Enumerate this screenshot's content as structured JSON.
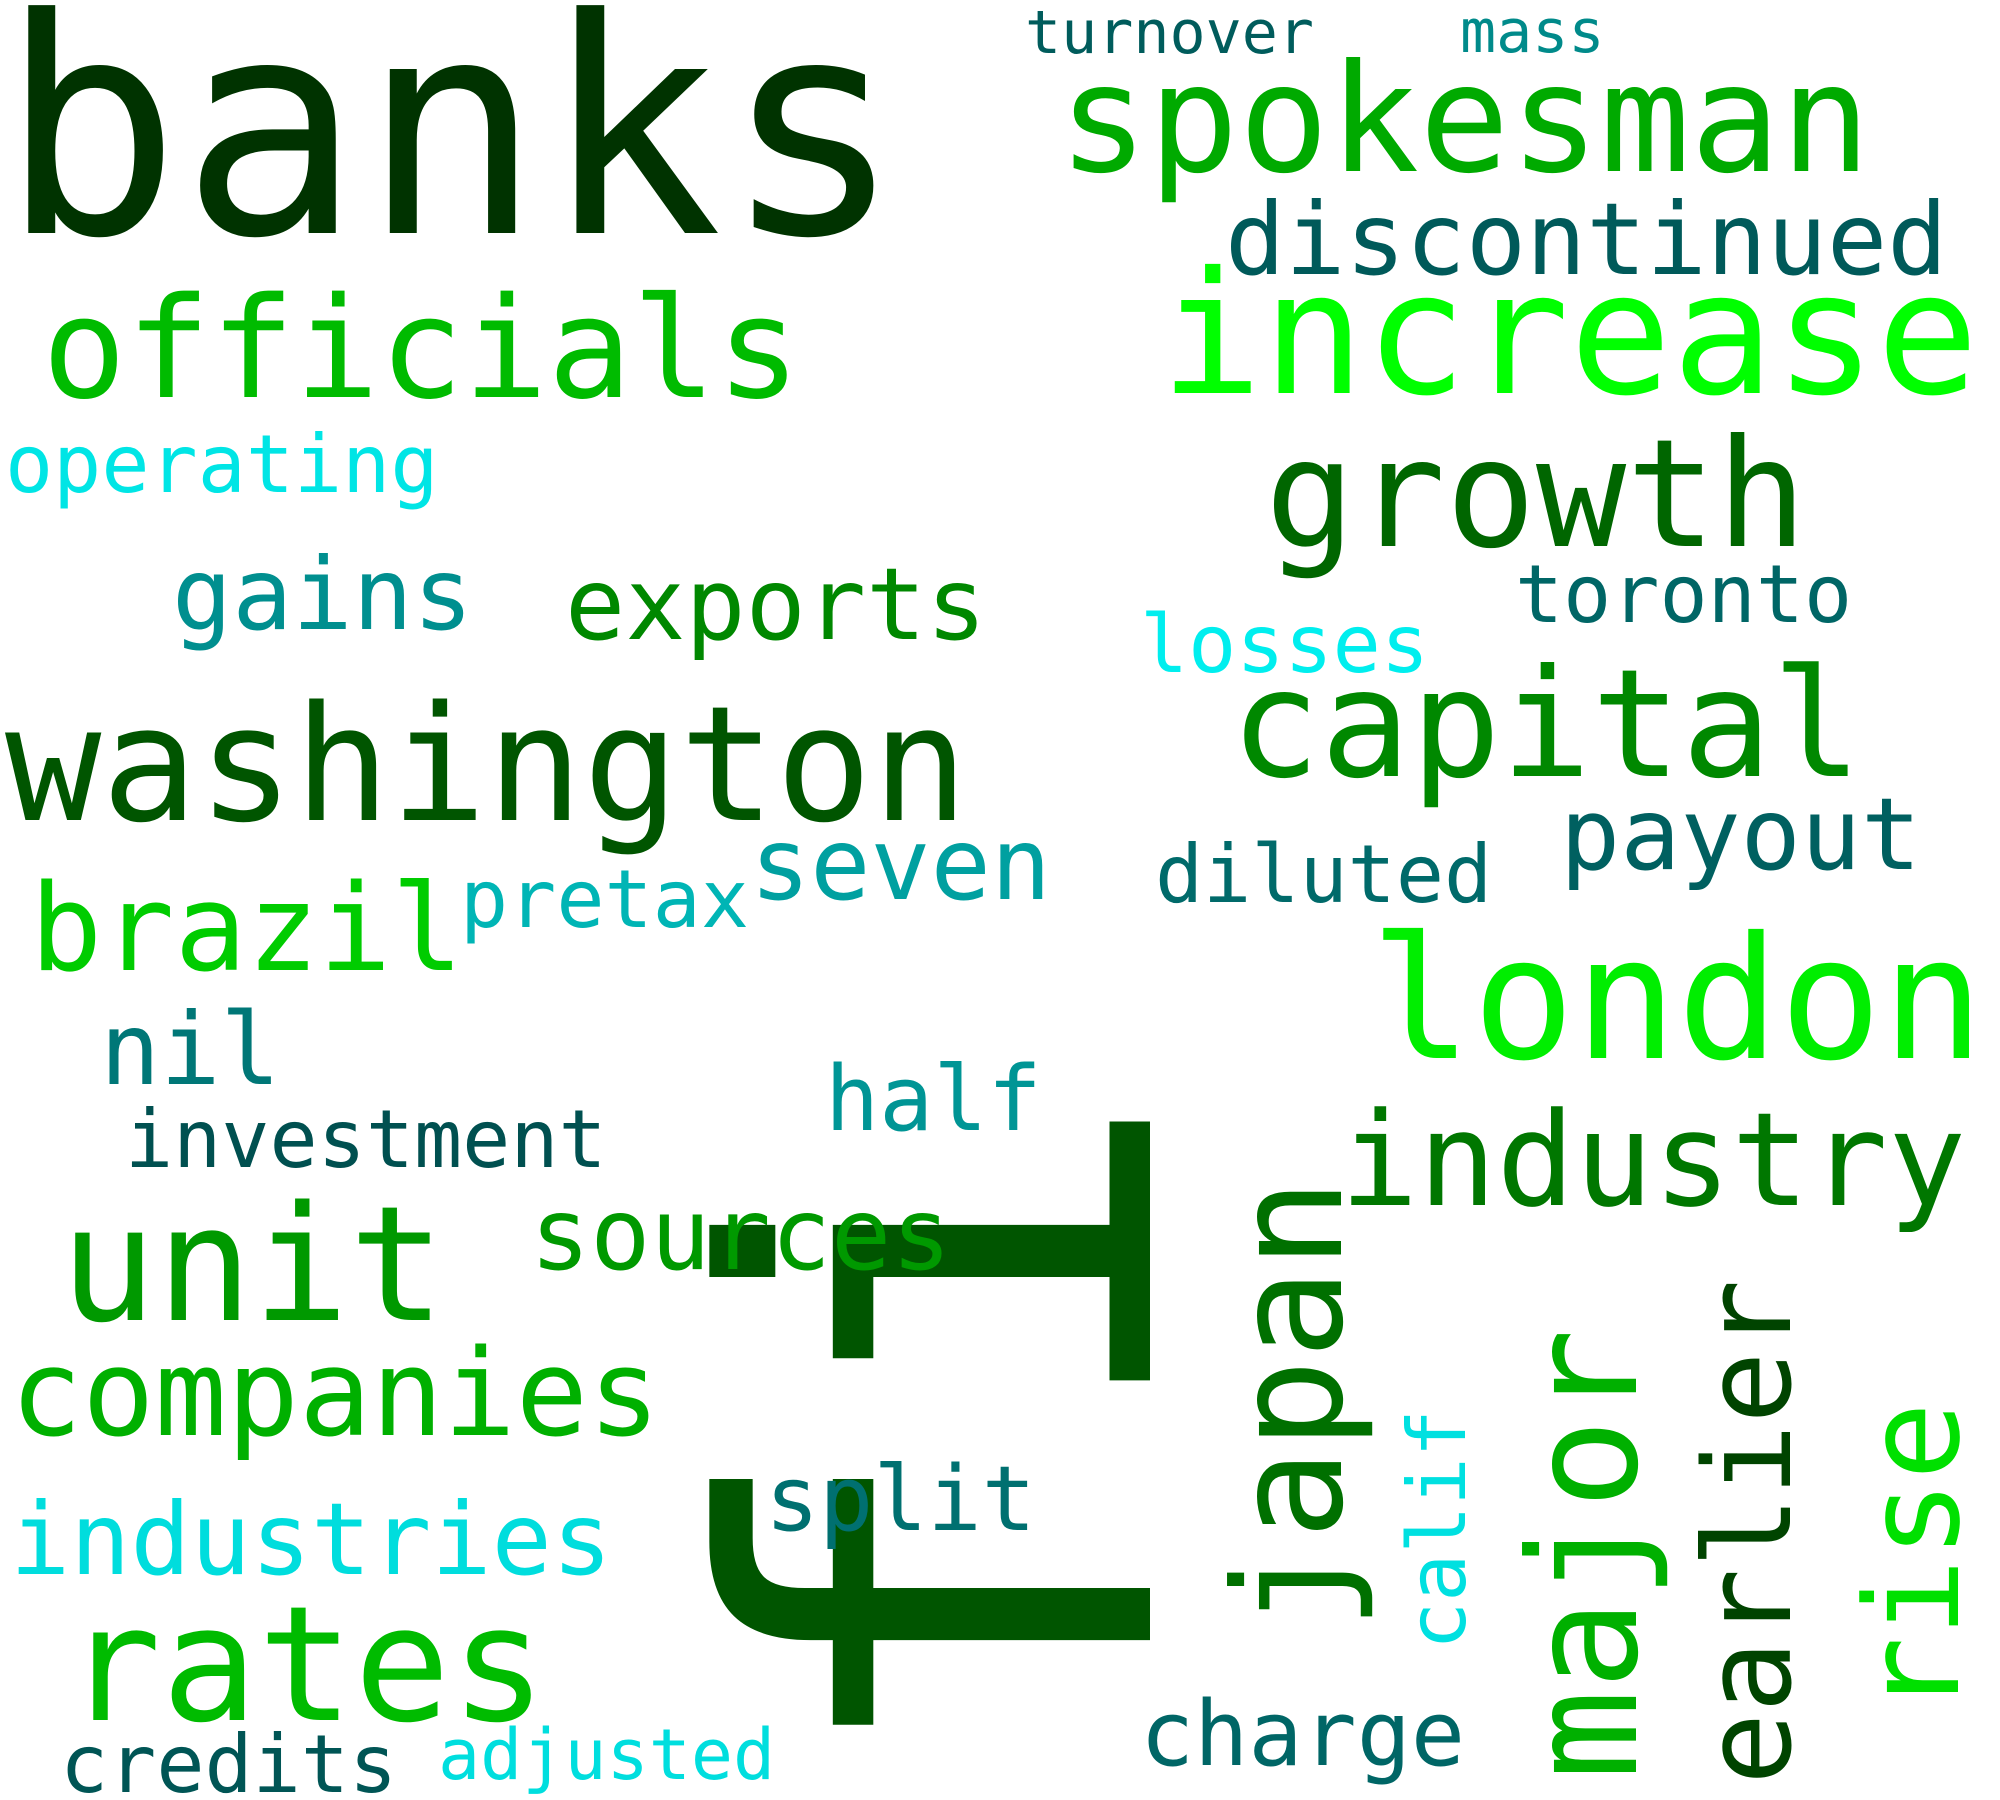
{
  "words": {
    "banks": {
      "text": "banks",
      "color": "#003300"
    },
    "spokesman": {
      "text": "spokesman",
      "color": "#00aa00"
    },
    "turnover": {
      "text": "turnover",
      "color": "#005c5c"
    },
    "mass": {
      "text": "mass",
      "color": "#008a8a"
    },
    "discontinued": {
      "text": "discontinued",
      "color": "#005a5a"
    },
    "officials": {
      "text": "officials",
      "color": "#00bb00"
    },
    "increase": {
      "text": "increase",
      "color": "#00ff00"
    },
    "big_fi": {
      "text": "fi",
      "color": "#005500"
    },
    "operating": {
      "text": "operating",
      "color": "#00e5e5"
    },
    "growth": {
      "text": "growth",
      "color": "#006600"
    },
    "gains": {
      "text": "gains",
      "color": "#008f8f"
    },
    "exports": {
      "text": "exports",
      "color": "#008800"
    },
    "toronto": {
      "text": "toronto",
      "color": "#006666"
    },
    "losses": {
      "text": "losses",
      "color": "#00eeee"
    },
    "washington": {
      "text": "washington",
      "color": "#005500"
    },
    "capital": {
      "text": "capital",
      "color": "#008800"
    },
    "seven": {
      "text": "seven",
      "color": "#00a0a0"
    },
    "payout": {
      "text": "payout",
      "color": "#006060"
    },
    "brazil": {
      "text": "brazil",
      "color": "#00cc00"
    },
    "pretax": {
      "text": "pretax",
      "color": "#00b5b5"
    },
    "diluted": {
      "text": "diluted",
      "color": "#006a6a"
    },
    "london": {
      "text": "london",
      "color": "#00ee00"
    },
    "nil": {
      "text": "nil",
      "color": "#007777"
    },
    "half": {
      "text": "half",
      "color": "#009595"
    },
    "investment": {
      "text": "investment",
      "color": "#005050"
    },
    "industry": {
      "text": "industry",
      "color": "#007700"
    },
    "unit": {
      "text": "unit",
      "color": "#009900"
    },
    "sources": {
      "text": "sources",
      "color": "#009900"
    },
    "japan": {
      "text": "japan",
      "color": "#007000"
    },
    "major": {
      "text": "major",
      "color": "#00b000"
    },
    "earlier": {
      "text": "earlier",
      "color": "#004400"
    },
    "rise": {
      "text": "rise",
      "color": "#00e000"
    },
    "calif": {
      "text": "calif",
      "color": "#00e0e0"
    },
    "companies": {
      "text": "companies",
      "color": "#00b000"
    },
    "split": {
      "text": "split",
      "color": "#007070"
    },
    "industries": {
      "text": "industries",
      "color": "#00dddd"
    },
    "rates": {
      "text": "rates",
      "color": "#00bb00"
    },
    "charge": {
      "text": "charge",
      "color": "#006666"
    },
    "credits": {
      "text": "credits",
      "color": "#005555"
    },
    "adjusted": {
      "text": "adjusted",
      "color": "#00dede"
    }
  }
}
